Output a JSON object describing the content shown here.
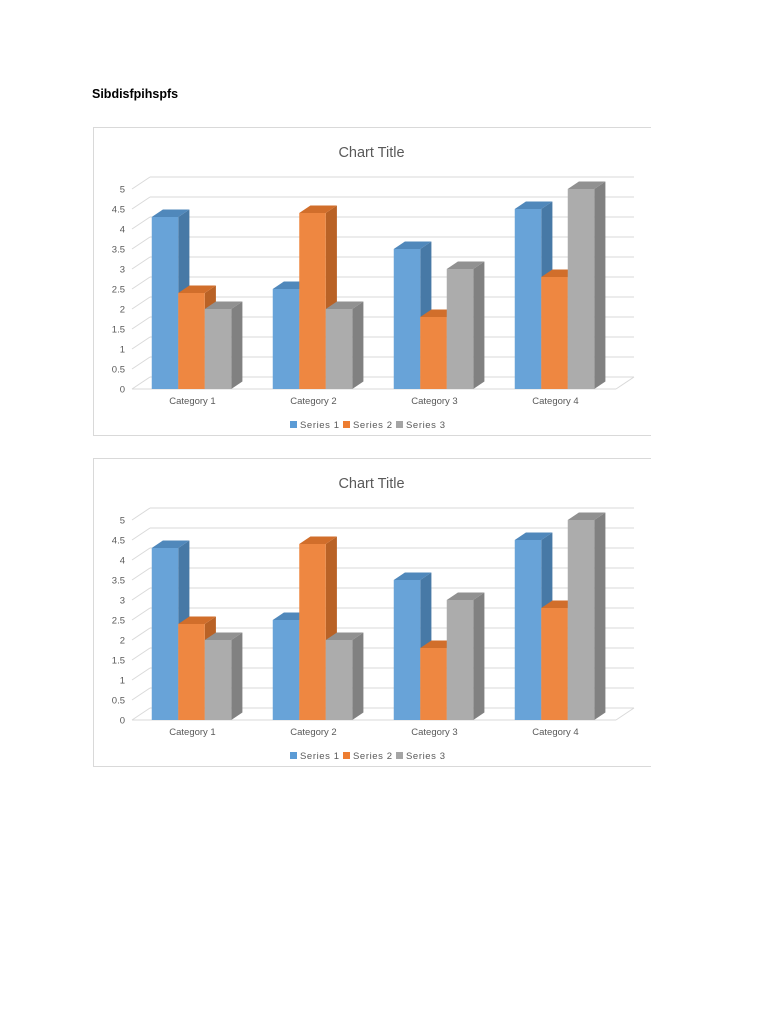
{
  "document": {
    "heading": "Sibdisfpihspfs"
  },
  "chart_data": [
    {
      "type": "bar",
      "title": "Chart Title",
      "categories": [
        "Category 1",
        "Category 2",
        "Category 3",
        "Category 4"
      ],
      "series": [
        {
          "name": "Series 1",
          "values": [
            4.3,
            2.5,
            3.5,
            4.5
          ],
          "color": "#5b9bd5"
        },
        {
          "name": "Series 2",
          "values": [
            2.4,
            4.4,
            1.8,
            2.8
          ],
          "color": "#ed7d31"
        },
        {
          "name": "Series 3",
          "values": [
            2.0,
            2.0,
            3.0,
            5.0
          ],
          "color": "#a5a5a5"
        }
      ],
      "ylim": [
        0,
        5
      ],
      "yticks": [
        "0",
        "0.5",
        "1",
        "1.5",
        "2",
        "2.5",
        "3",
        "3.5",
        "4",
        "4.5",
        "5"
      ],
      "grid": true,
      "legend": "bottom",
      "style": "3d-clustered-column"
    },
    {
      "type": "bar",
      "title": "Chart Title",
      "categories": [
        "Category 1",
        "Category 2",
        "Category 3",
        "Category 4"
      ],
      "series": [
        {
          "name": "Series 1",
          "values": [
            4.3,
            2.5,
            3.5,
            4.5
          ],
          "color": "#5b9bd5"
        },
        {
          "name": "Series 2",
          "values": [
            2.4,
            4.4,
            1.8,
            2.8
          ],
          "color": "#ed7d31"
        },
        {
          "name": "Series 3",
          "values": [
            2.0,
            2.0,
            3.0,
            5.0
          ],
          "color": "#a5a5a5"
        }
      ],
      "ylim": [
        0,
        5
      ],
      "yticks": [
        "0",
        "0.5",
        "1",
        "1.5",
        "2",
        "2.5",
        "3",
        "3.5",
        "4",
        "4.5",
        "5"
      ],
      "grid": true,
      "legend": "bottom",
      "style": "3d-clustered-column"
    }
  ]
}
